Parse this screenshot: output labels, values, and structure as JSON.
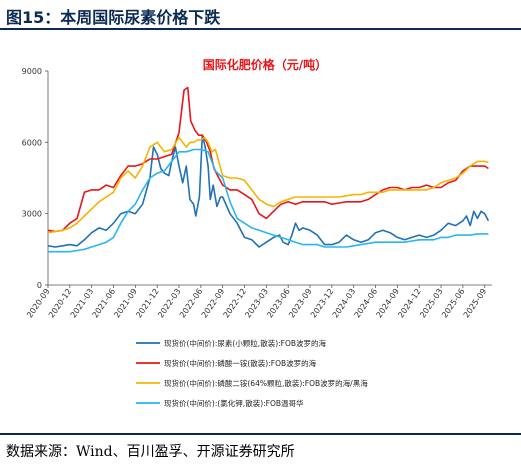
{
  "figure_title": "图15：本周国际尿素价格下跌",
  "source_note": "数据来源：Wind、百川盈孚、开源证券研究所",
  "chart_data": {
    "type": "line",
    "title": "国际化肥价格（元/吨）",
    "ylim": [
      0,
      9000
    ],
    "yticks": [
      "0",
      "3000",
      "6000",
      "9000"
    ],
    "x_tick_labels": [
      "2020-09",
      "2020-12",
      "2021-03",
      "2021-06",
      "2021-09",
      "2021-12",
      "2022-03",
      "2022-06",
      "2022-09",
      "2022-12",
      "2023-03",
      "2023-06",
      "2023-09",
      "2023-12",
      "2024-03",
      "2024-06",
      "2024-09",
      "2024-12",
      "2025-03",
      "2025-06",
      "2025-09"
    ],
    "x_months": [
      0,
      3,
      6,
      9,
      12,
      15,
      18,
      21,
      24,
      27,
      30,
      33,
      36,
      39,
      42,
      45,
      48,
      51,
      54,
      57,
      60
    ],
    "grid": false,
    "legend_position": "bottom",
    "series": [
      {
        "name": "现货价(中间价):尿素(小颗粒,散装):FOB波罗的海",
        "color": "#2171b5",
        "points": [
          [
            0,
            1650
          ],
          [
            1,
            1600
          ],
          [
            2,
            1650
          ],
          [
            3,
            1700
          ],
          [
            4,
            1650
          ],
          [
            5,
            1900
          ],
          [
            6,
            2200
          ],
          [
            7,
            2400
          ],
          [
            8,
            2300
          ],
          [
            9,
            2600
          ],
          [
            10,
            3000
          ],
          [
            11,
            3100
          ],
          [
            12,
            3000
          ],
          [
            13,
            3400
          ],
          [
            14,
            4500
          ],
          [
            14.5,
            5800
          ],
          [
            15,
            5500
          ],
          [
            15.5,
            4900
          ],
          [
            16,
            4700
          ],
          [
            16.6,
            4600
          ],
          [
            17,
            5200
          ],
          [
            17.5,
            5800
          ],
          [
            18,
            5000
          ],
          [
            18.5,
            4300
          ],
          [
            19,
            5000
          ],
          [
            19.5,
            3600
          ],
          [
            20,
            3400
          ],
          [
            20.3,
            2900
          ],
          [
            20.8,
            3700
          ],
          [
            21.2,
            6300
          ],
          [
            21.6,
            5800
          ],
          [
            22,
            5000
          ],
          [
            22.3,
            3600
          ],
          [
            22.7,
            4200
          ],
          [
            23.2,
            3300
          ],
          [
            23.7,
            3700
          ],
          [
            24,
            3700
          ],
          [
            25,
            3000
          ],
          [
            26,
            2600
          ],
          [
            27,
            2000
          ],
          [
            28,
            1900
          ],
          [
            29,
            1600
          ],
          [
            30,
            1800
          ],
          [
            31,
            2000
          ],
          [
            31.8,
            2100
          ],
          [
            32.3,
            1800
          ],
          [
            33,
            1700
          ],
          [
            33.5,
            2100
          ],
          [
            34,
            2600
          ],
          [
            34.5,
            2300
          ],
          [
            35,
            2400
          ],
          [
            36,
            2300
          ],
          [
            37,
            2100
          ],
          [
            38,
            1700
          ],
          [
            39,
            1700
          ],
          [
            40,
            1800
          ],
          [
            41,
            2100
          ],
          [
            42,
            1900
          ],
          [
            43,
            1800
          ],
          [
            44,
            1900
          ],
          [
            45,
            2200
          ],
          [
            46,
            2300
          ],
          [
            47,
            2200
          ],
          [
            48,
            2000
          ],
          [
            49,
            1900
          ],
          [
            50,
            2000
          ],
          [
            51,
            2100
          ],
          [
            52,
            2000
          ],
          [
            53,
            2100
          ],
          [
            54,
            2300
          ],
          [
            55,
            2600
          ],
          [
            56,
            2500
          ],
          [
            57,
            2700
          ],
          [
            57.5,
            2900
          ],
          [
            58,
            2500
          ],
          [
            58.5,
            3100
          ],
          [
            59,
            2800
          ],
          [
            59.5,
            3100
          ],
          [
            60,
            3000
          ],
          [
            60.5,
            2700
          ]
        ]
      },
      {
        "name": "现货价(中间价):磷酸一铵(散装):FOB波罗的海",
        "color": "#e8161a",
        "points": [
          [
            0,
            2300
          ],
          [
            1,
            2250
          ],
          [
            2,
            2300
          ],
          [
            3,
            2600
          ],
          [
            4,
            2800
          ],
          [
            5,
            3900
          ],
          [
            6,
            4000
          ],
          [
            7,
            4000
          ],
          [
            8,
            4200
          ],
          [
            9,
            4100
          ],
          [
            10,
            4600
          ],
          [
            11,
            5000
          ],
          [
            12,
            5000
          ],
          [
            13,
            5100
          ],
          [
            14,
            5300
          ],
          [
            15,
            5300
          ],
          [
            16,
            5400
          ],
          [
            17,
            5500
          ],
          [
            18,
            6400
          ],
          [
            18.3,
            7200
          ],
          [
            18.7,
            8200
          ],
          [
            19.2,
            8300
          ],
          [
            19.6,
            6900
          ],
          [
            20.2,
            6500
          ],
          [
            20.7,
            6300
          ],
          [
            21.2,
            6300
          ],
          [
            21.8,
            6000
          ],
          [
            22.3,
            5600
          ],
          [
            22.8,
            4900
          ],
          [
            23.3,
            4600
          ],
          [
            24,
            4200
          ],
          [
            25,
            4000
          ],
          [
            26,
            4000
          ],
          [
            27,
            3800
          ],
          [
            28,
            3600
          ],
          [
            29,
            3000
          ],
          [
            30,
            2800
          ],
          [
            31,
            3100
          ],
          [
            32,
            3400
          ],
          [
            33,
            3500
          ],
          [
            34,
            3400
          ],
          [
            35,
            3500
          ],
          [
            36,
            3500
          ],
          [
            37,
            3500
          ],
          [
            38,
            3500
          ],
          [
            39,
            3400
          ],
          [
            40,
            3450
          ],
          [
            41,
            3500
          ],
          [
            42,
            3500
          ],
          [
            43,
            3500
          ],
          [
            44,
            3600
          ],
          [
            45,
            3800
          ],
          [
            46,
            4000
          ],
          [
            47,
            4100
          ],
          [
            48,
            4100
          ],
          [
            49,
            4000
          ],
          [
            50,
            4100
          ],
          [
            51,
            4100
          ],
          [
            52,
            4200
          ],
          [
            53,
            4100
          ],
          [
            54,
            4100
          ],
          [
            55,
            4300
          ],
          [
            56,
            4400
          ],
          [
            57,
            4800
          ],
          [
            58,
            5000
          ],
          [
            59,
            5000
          ],
          [
            60,
            5000
          ],
          [
            60.5,
            4900
          ]
        ]
      },
      {
        "name": "现货价(中间价):磷酸二铵(64%颗粒,散装):FOB波罗的海/黑海",
        "color": "#f5b400",
        "points": [
          [
            0,
            2200
          ],
          [
            1,
            2250
          ],
          [
            2,
            2300
          ],
          [
            3,
            2400
          ],
          [
            4,
            2600
          ],
          [
            5,
            2900
          ],
          [
            6,
            3200
          ],
          [
            7,
            3500
          ],
          [
            8,
            3700
          ],
          [
            9,
            3900
          ],
          [
            10,
            4500
          ],
          [
            11,
            4800
          ],
          [
            12,
            4500
          ],
          [
            13,
            5000
          ],
          [
            14,
            5800
          ],
          [
            15,
            6000
          ],
          [
            16,
            5600
          ],
          [
            17,
            5700
          ],
          [
            18,
            6200
          ],
          [
            18.5,
            6000
          ],
          [
            19,
            5800
          ],
          [
            19.5,
            6000
          ],
          [
            20,
            6000
          ],
          [
            20.5,
            6100
          ],
          [
            21,
            6100
          ],
          [
            21.5,
            6200
          ],
          [
            22,
            6000
          ],
          [
            22.5,
            5600
          ],
          [
            23,
            5700
          ],
          [
            24,
            4600
          ],
          [
            25,
            4500
          ],
          [
            26,
            4500
          ],
          [
            27,
            4400
          ],
          [
            28,
            4000
          ],
          [
            29,
            3600
          ],
          [
            30,
            3400
          ],
          [
            31,
            3300
          ],
          [
            32,
            3500
          ],
          [
            33,
            3600
          ],
          [
            34,
            3700
          ],
          [
            35,
            3700
          ],
          [
            36,
            3700
          ],
          [
            37,
            3700
          ],
          [
            38,
            3700
          ],
          [
            39,
            3700
          ],
          [
            40,
            3700
          ],
          [
            41,
            3750
          ],
          [
            42,
            3800
          ],
          [
            43,
            3800
          ],
          [
            44,
            3900
          ],
          [
            45,
            3900
          ],
          [
            46,
            3900
          ],
          [
            47,
            4000
          ],
          [
            48,
            4000
          ],
          [
            49,
            4000
          ],
          [
            50,
            4000
          ],
          [
            51,
            4000
          ],
          [
            52,
            4000
          ],
          [
            53,
            4100
          ],
          [
            54,
            4300
          ],
          [
            55,
            4400
          ],
          [
            56,
            4500
          ],
          [
            57,
            4700
          ],
          [
            58,
            5000
          ],
          [
            59,
            5200
          ],
          [
            60,
            5200
          ],
          [
            60.5,
            5150
          ]
        ]
      },
      {
        "name": "现货价(中间价):(氯化钾,散装):FOB温哥华",
        "color": "#2ab5f0",
        "points": [
          [
            0,
            1400
          ],
          [
            1,
            1400
          ],
          [
            2,
            1400
          ],
          [
            3,
            1400
          ],
          [
            4,
            1450
          ],
          [
            5,
            1500
          ],
          [
            6,
            1600
          ],
          [
            7,
            1700
          ],
          [
            8,
            1800
          ],
          [
            9,
            2000
          ],
          [
            10,
            2600
          ],
          [
            11,
            3100
          ],
          [
            12,
            3400
          ],
          [
            13,
            4000
          ],
          [
            14,
            4500
          ],
          [
            15,
            4700
          ],
          [
            16,
            4800
          ],
          [
            17,
            5200
          ],
          [
            18,
            5600
          ],
          [
            19,
            5600
          ],
          [
            20,
            5700
          ],
          [
            21,
            5700
          ],
          [
            22,
            5600
          ],
          [
            23,
            4800
          ],
          [
            24,
            4500
          ],
          [
            25,
            3500
          ],
          [
            26,
            2800
          ],
          [
            27,
            2600
          ],
          [
            28,
            2400
          ],
          [
            29,
            2300
          ],
          [
            30,
            2200
          ],
          [
            31,
            2100
          ],
          [
            32,
            2000
          ],
          [
            33,
            1900
          ],
          [
            34,
            1800
          ],
          [
            35,
            1700
          ],
          [
            36,
            1700
          ],
          [
            37,
            1700
          ],
          [
            38,
            1600
          ],
          [
            39,
            1600
          ],
          [
            40,
            1600
          ],
          [
            41,
            1600
          ],
          [
            42,
            1650
          ],
          [
            43,
            1700
          ],
          [
            44,
            1750
          ],
          [
            45,
            1800
          ],
          [
            46,
            1800
          ],
          [
            47,
            1800
          ],
          [
            48,
            1800
          ],
          [
            49,
            1800
          ],
          [
            50,
            1850
          ],
          [
            51,
            1900
          ],
          [
            52,
            1900
          ],
          [
            53,
            1900
          ],
          [
            54,
            2000
          ],
          [
            55,
            2000
          ],
          [
            56,
            2100
          ],
          [
            57,
            2100
          ],
          [
            58,
            2100
          ],
          [
            59,
            2150
          ],
          [
            60,
            2150
          ],
          [
            60.5,
            2150
          ]
        ]
      }
    ]
  }
}
